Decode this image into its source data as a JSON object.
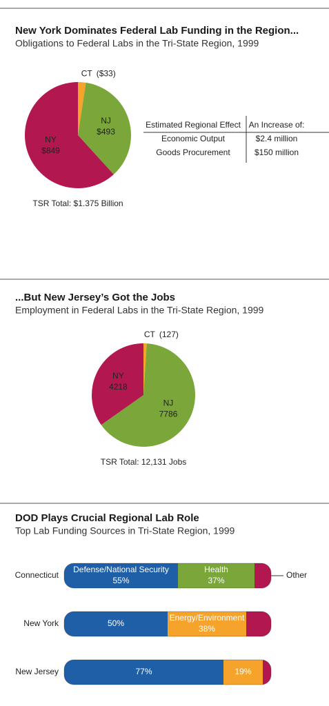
{
  "chart_data": [
    {
      "type": "pie",
      "title": "New York Dominates Federal Lab Funding in the Region...",
      "subtitle": "Obligations to Federal Labs in the Tri-State Region, 1999",
      "categories": [
        "CT",
        "NJ",
        "NY"
      ],
      "values": [
        33,
        493,
        849
      ],
      "value_labels": [
        "($33)",
        "$493",
        "$849"
      ],
      "colors": [
        "#f5a32a",
        "#7aa63a",
        "#b3174f"
      ],
      "total_label": "TSR Total: $1.375 Billion"
    },
    {
      "type": "pie",
      "title": "...But New Jersey’s Got the Jobs",
      "subtitle": "Employment in Federal Labs in the Tri-State Region, 1999",
      "categories": [
        "CT",
        "NJ",
        "NY"
      ],
      "values": [
        127,
        7786,
        4218
      ],
      "value_labels": [
        "(127)",
        "7786",
        "4218"
      ],
      "colors": [
        "#f5a32a",
        "#7aa63a",
        "#b3174f"
      ],
      "total_label": "TSR Total: 12,131 Jobs"
    },
    {
      "type": "barh-stacked",
      "title": "DOD Plays Crucial Regional Lab Role",
      "subtitle": "Top Lab Funding Sources in Tri-State Region, 1999",
      "categories": [
        "Connecticut",
        "New York",
        "New Jersey"
      ],
      "xlim": [
        0,
        100
      ],
      "series": [
        {
          "name": "Defense/National Security",
          "color": "#1f5fa8",
          "values": [
            55,
            50,
            77
          ],
          "value_labels": [
            "55%",
            "50%",
            "77%"
          ]
        },
        {
          "name": "Health",
          "color": "#7aa63a",
          "values": [
            37,
            null,
            null
          ],
          "value_labels": [
            "37%",
            null,
            null
          ]
        },
        {
          "name": "Energy/Environment",
          "color": "#f5a32a",
          "values": [
            null,
            38,
            19
          ],
          "value_labels": [
            null,
            "38%",
            "19%"
          ]
        },
        {
          "name": "Other",
          "color": "#b3174f",
          "values": [
            8,
            12,
            4
          ]
        }
      ]
    }
  ],
  "table": {
    "header": [
      "Estimated Regional Effect",
      "An Increase of:"
    ],
    "rows": [
      [
        "Economic Output",
        "$2.4 million"
      ],
      [
        "Goods Procurement",
        "$150 million"
      ]
    ]
  }
}
